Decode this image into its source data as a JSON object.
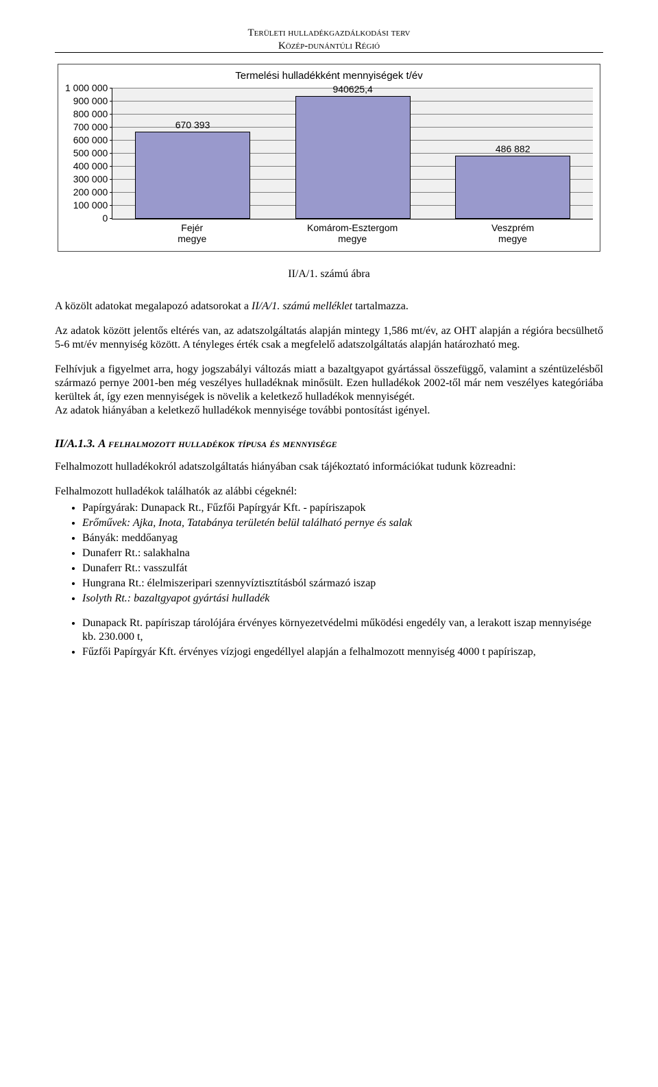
{
  "header": {
    "line1": "Területi hulladékgazdálkodási terv",
    "line2": "Közép-dunántúli Régió"
  },
  "chart": {
    "type": "bar",
    "title": "Termelési hulladékként mennyiségek t/év",
    "ylim": [
      0,
      1000000
    ],
    "yticks": [
      "1 000 000",
      "900 000",
      "800 000",
      "700 000",
      "600 000",
      "500 000",
      "400 000",
      "300 000",
      "200 000",
      "100 000",
      "0"
    ],
    "background_color": "#f0f0f0",
    "grid_color": "#808080",
    "bar_color": "#9999cc",
    "bar_border": "#000000",
    "bars": [
      {
        "category": "Fejér megye",
        "value": 670393,
        "label": "670 393"
      },
      {
        "category": "Komárom-Esztergom megye",
        "value": 940625.4,
        "label": "940625,4"
      },
      {
        "category": "Veszprém megye",
        "value": 486882,
        "label": "486 882"
      }
    ]
  },
  "caption": "II/A/1. számú ábra",
  "para1a": "A közölt adatokat megalapozó adatsorokat a ",
  "para1b": "II/A/1. számú melléklet",
  "para1c": " tartalmazza.",
  "para2": "Az adatok között jelentős eltérés van, az adatszolgáltatás alapján mintegy 1,586 mt/év, az OHT alapján a régióra becsülhető 5-6 mt/év mennyiség között. A tényleges érték csak a megfelelő adatszolgáltatás alapján határozható meg.",
  "para3": "Felhívjuk a figyelmet arra, hogy jogszabályi változás miatt a bazaltgyapot gyártással összefüggő, valamint a széntüzelésből származó pernye 2001-ben még veszélyes hulladéknak minősült. Ezen hulladékok 2002-től már nem veszélyes kategóriába kerültek át, így ezen mennyiségek is növelik a keletkező hulladékok mennyiségét.",
  "para4": "Az adatok hiányában a keletkező hulladékok mennyisége további pontosítást igényel.",
  "section": {
    "num": "II/A.1.3. ",
    "title": "A felhalmozott hulladékok típusa és mennyisége"
  },
  "para5": "Felhalmozott hulladékokról adatszolgáltatás hiányában csak tájékoztató információkat tudunk közreadni:",
  "listIntro": "Felhalmozott hulladékok találhatók az alábbi cégeknél:",
  "list1": [
    {
      "text": "Papírgyárak: Dunapack Rt., Fűzfői Papírgyár Kft. - papíriszapok",
      "italic": false
    },
    {
      "text": "Erőművek: Ajka, Inota, Tatabánya területén belül található pernye és salak",
      "italic": true
    },
    {
      "text": "Bányák: meddőanyag",
      "italic": false
    },
    {
      "text": "Dunaferr Rt.: salakhalna",
      "italic": false
    },
    {
      "text": "Dunaferr Rt.: vasszulfát",
      "italic": false
    },
    {
      "text": "Hungrana Rt.: élelmiszeripari szennyvíztisztításból származó iszap",
      "italic": false
    },
    {
      "text": "Isolyth Rt.: bazaltgyapot gyártási hulladék",
      "italic": true
    }
  ],
  "list2": [
    {
      "text": "Dunapack Rt. papíriszap tárolójára érvényes környezetvédelmi működési engedély van, a lerakott iszap mennyisége kb. 230.000 t,",
      "italic": false
    },
    {
      "text": "Fűzfői Papírgyár Kft. érvényes vízjogi engedéllyel alapján a felhalmozott mennyiség 4000 t papíriszap,",
      "italic": false
    }
  ]
}
